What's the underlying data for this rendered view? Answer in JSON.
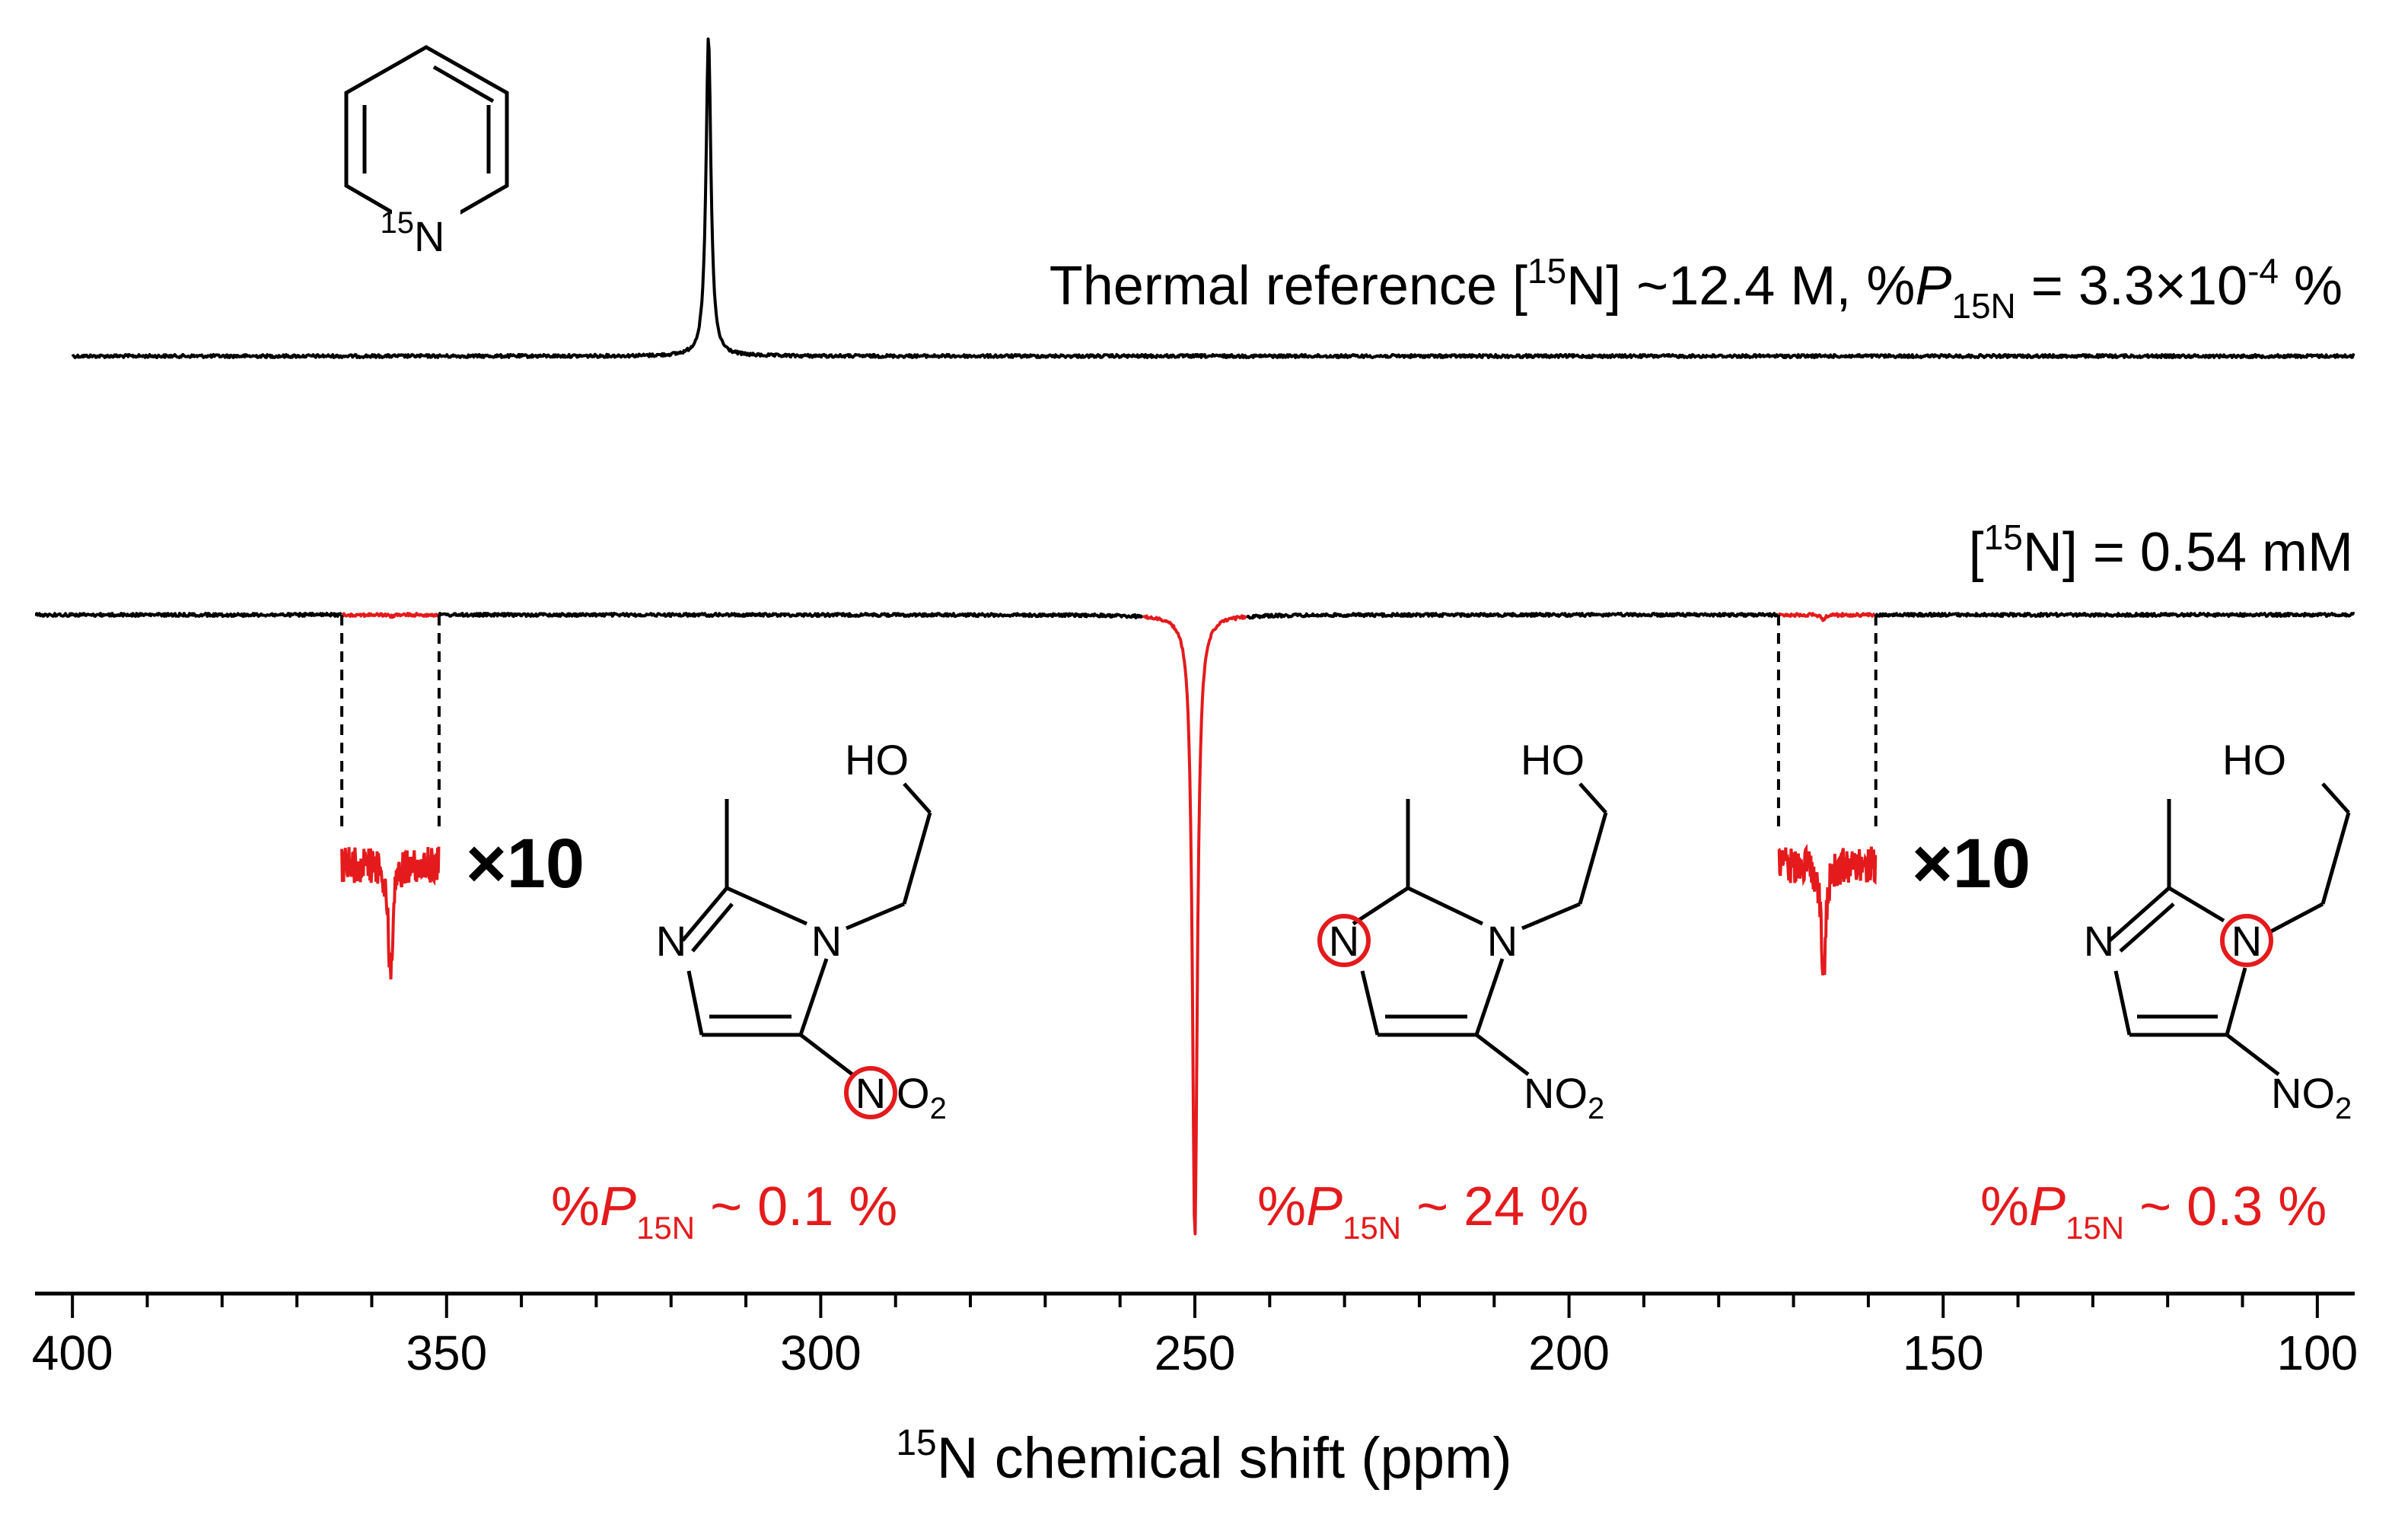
{
  "chart_data": {
    "type": "line",
    "title": "",
    "xlabel_sup": "15",
    "xlabel": "N chemical shift (ppm)",
    "xlim": [
      405,
      95
    ],
    "xticks": [
      400,
      350,
      300,
      250,
      200,
      150,
      100
    ],
    "xtick_labels": [
      "400",
      "350",
      "300",
      "250",
      "200",
      "150",
      "100"
    ],
    "minor_tick_step": 10,
    "reversed_x": true,
    "grid": false,
    "colors": {
      "thermal": "#000000",
      "hyperpolarized": "#000000",
      "highlight": "#e41a1c"
    },
    "series": [
      {
        "key": "thermal",
        "x_range": [
          400,
          95
        ],
        "peaks": [
          {
            "x": 315,
            "height": 1.0,
            "width": 0.8,
            "sign": 1
          }
        ]
      },
      {
        "key": "hyperpolarized",
        "x_range": [
          405,
          95
        ],
        "peaks": [
          {
            "x": 250,
            "height": 1.0,
            "width": 0.8,
            "sign": -1
          },
          {
            "x": 357.5,
            "height": 0.003,
            "width": 0.6,
            "sign": -1
          },
          {
            "x": 166,
            "height": 0.008,
            "width": 0.6,
            "sign": -1
          }
        ],
        "zoom_regions": [
          {
            "x_from": 364,
            "x_to": 351,
            "factor": "×10",
            "peak_x": 357.5
          },
          {
            "x_from": 172,
            "x_to": 159,
            "factor": "×10",
            "peak_x": 166
          }
        ]
      }
    ],
    "annotations": {
      "thermal_label": {
        "pre": "Thermal reference [",
        "sup": "15",
        "mid": "N] ~12.4 M, %",
        "p": "P",
        "sub": "15N",
        "post": " = 3.3×10",
        "exp": "-4",
        "end": " %"
      },
      "hp_label": {
        "pre": "[",
        "sup": "15",
        "post": "N] = 0.54 mM"
      },
      "polarizations": [
        {
          "prefix": "%",
          "p": "P",
          "sub": "15N",
          "value": " ~ 0.1 %"
        },
        {
          "prefix": "%",
          "p": "P",
          "sub": "15N",
          "value": " ~ 24 %"
        },
        {
          "prefix": "%",
          "p": "P",
          "sub": "15N",
          "value": " ~ 0.3 %"
        }
      ]
    }
  },
  "structures": {
    "pyridine": {
      "n_sup": "15",
      "n": "N"
    },
    "metronidazole": {
      "ho": "HO",
      "n": "N",
      "no2": "NO",
      "no2_sub": "2",
      "o2": "O",
      "o2_sub": "2"
    }
  }
}
